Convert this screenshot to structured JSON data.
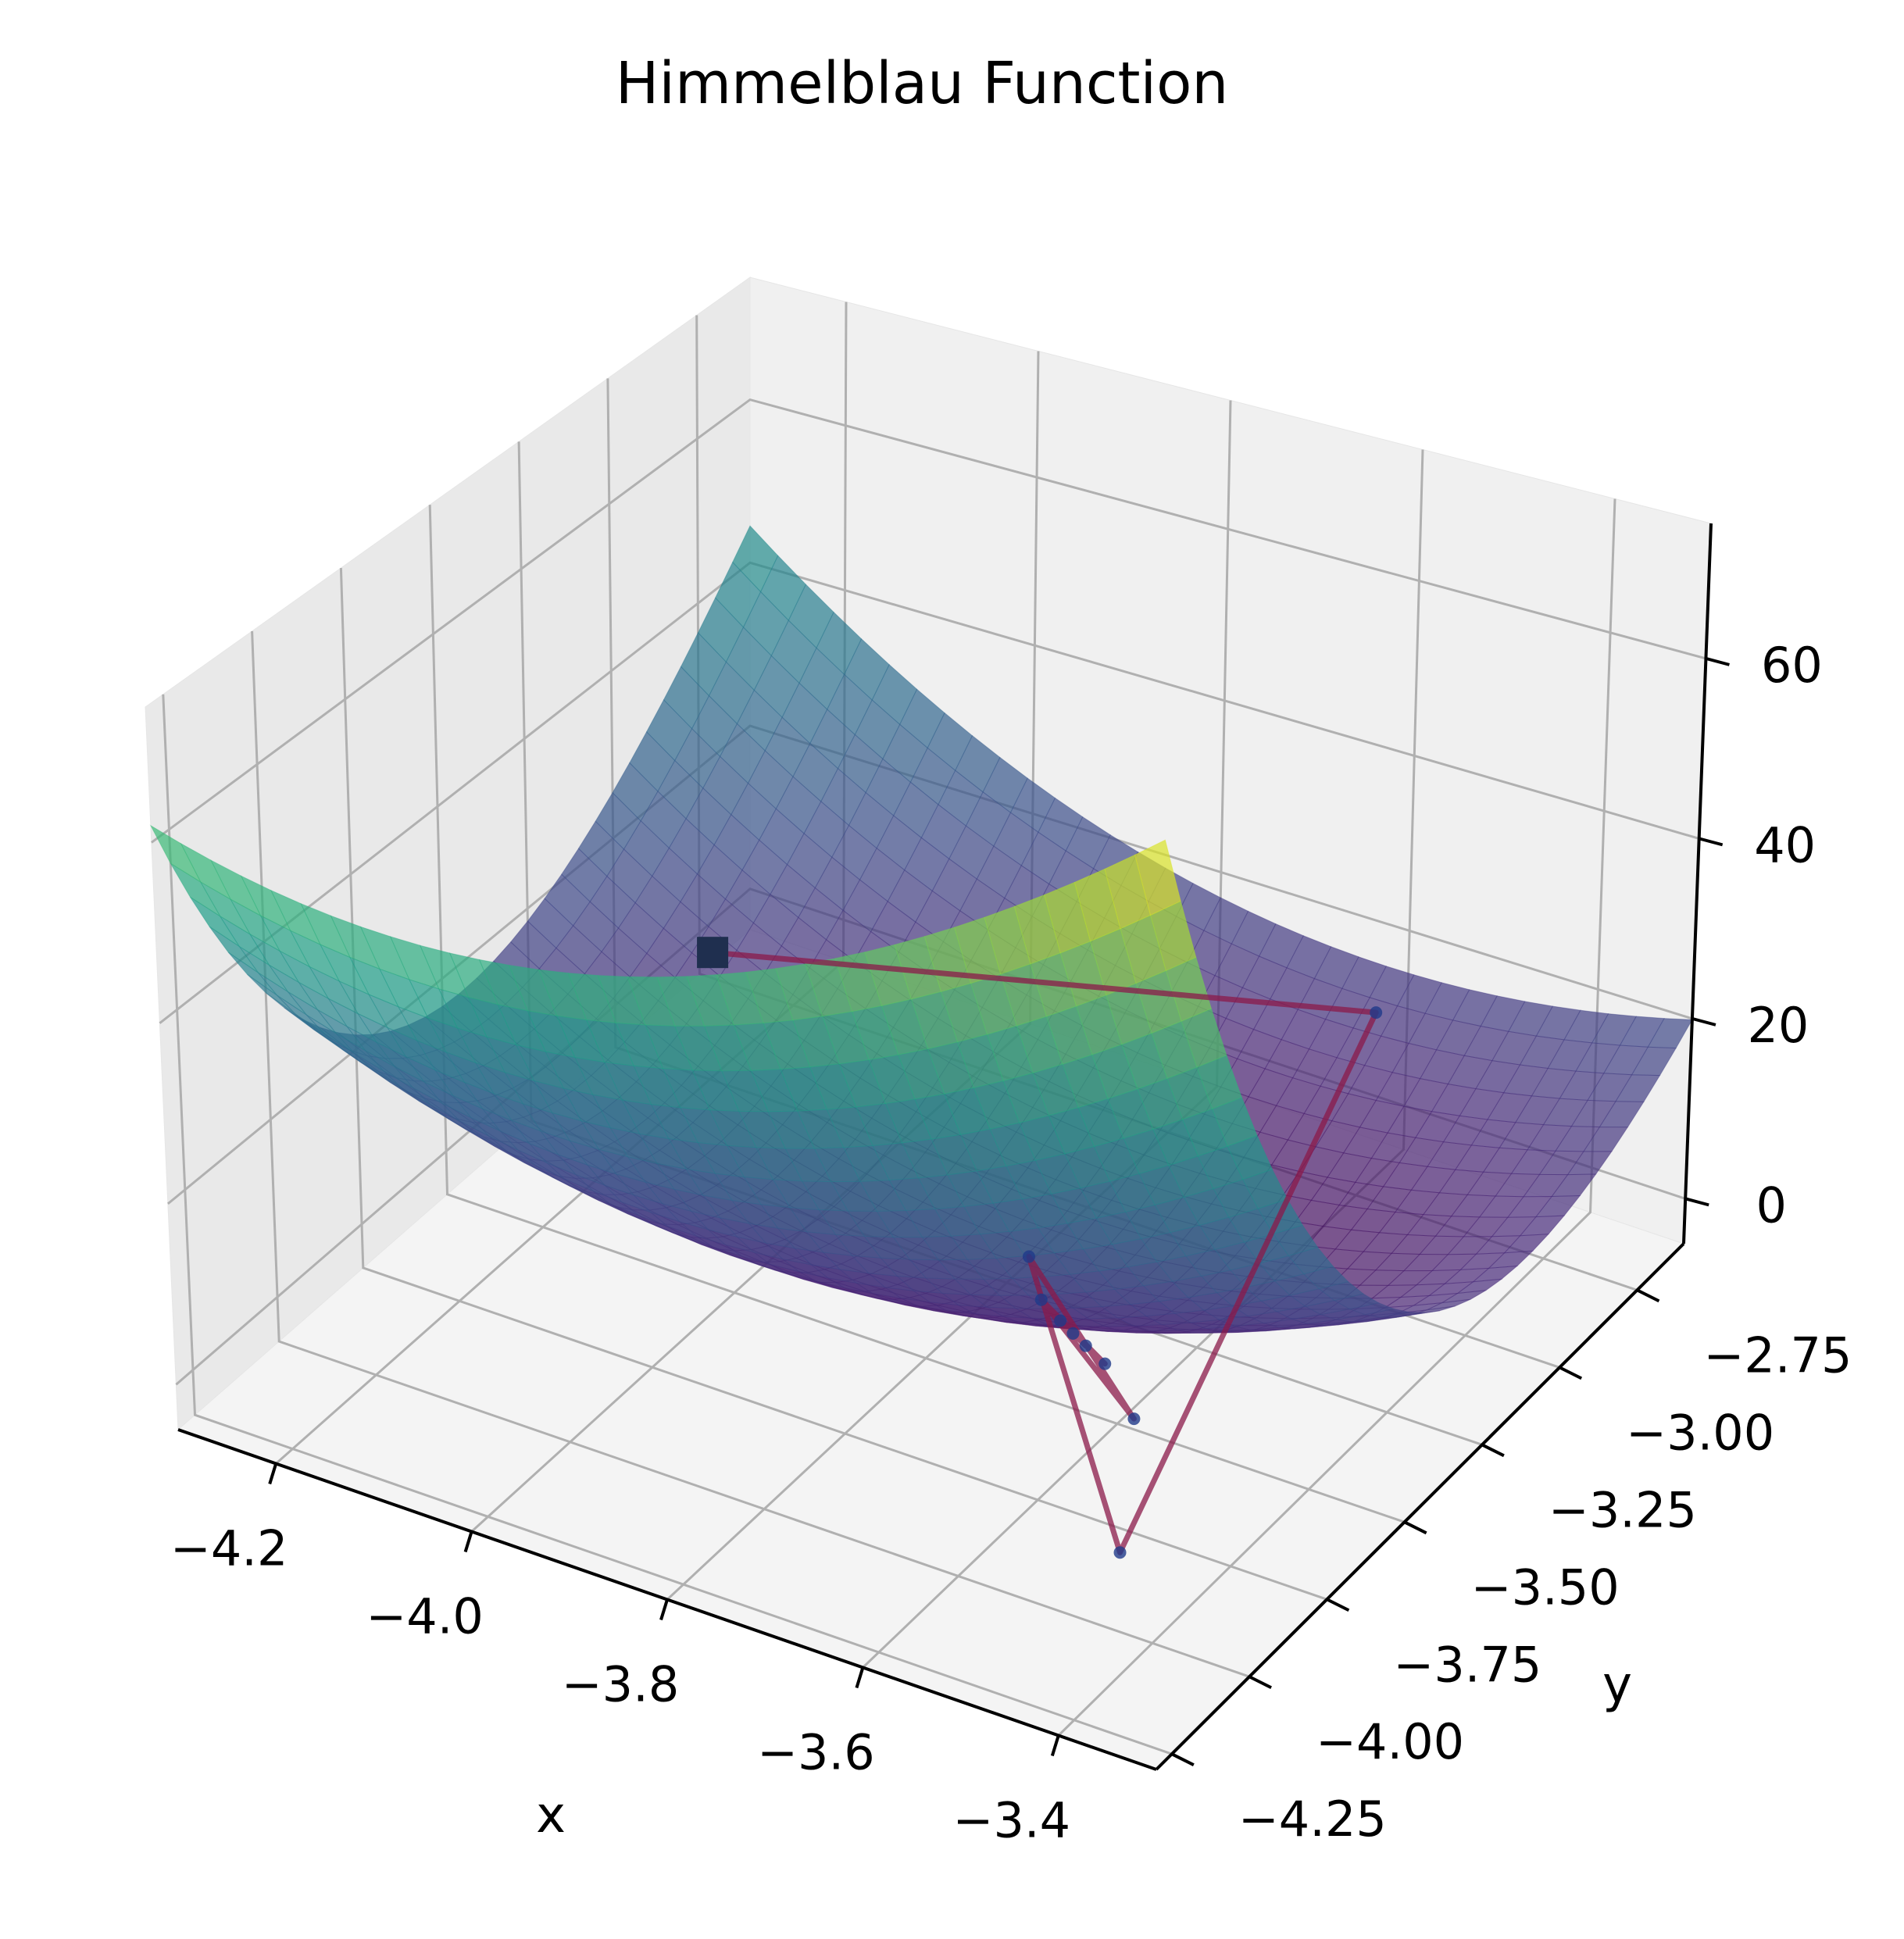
{
  "chart_data": {
    "type": "surface3d",
    "title": "Himmelblau Function",
    "xlabel": "x",
    "ylabel": "y",
    "zlabel": "",
    "xlim": [
      -4.3,
      -3.3
    ],
    "ylim": [
      -4.3,
      -2.6
    ],
    "zlim": [
      -5,
      75
    ],
    "x_ticks": [
      -4.2,
      -4.0,
      -3.8,
      -3.6,
      -3.4
    ],
    "x_tick_labels": [
      "−4.2",
      "−4.0",
      "−3.8",
      "−3.6",
      "−3.4"
    ],
    "y_ticks": [
      -4.25,
      -4.0,
      -3.75,
      -3.5,
      -3.25,
      -3.0,
      -2.75
    ],
    "y_tick_labels": [
      "−4.25",
      "−4.00",
      "−3.75",
      "−3.50",
      "−3.25",
      "−3.00",
      "−2.75"
    ],
    "z_ticks": [
      0,
      20,
      40,
      60
    ],
    "z_tick_labels": [
      "0",
      "20",
      "40",
      "60"
    ],
    "grid": true,
    "colormap": "viridis",
    "surface": {
      "function": "(x^2 + y - 11)^2 + (x + y^2 - 7)^2",
      "x_range": [
        -4.3,
        -3.3
      ],
      "y_range": [
        -4.3,
        -2.6
      ],
      "alpha": 0.7
    },
    "optimization_path": {
      "color": "#8b1a4a",
      "points": [
        {
          "x": -4.25,
          "y": -2.85,
          "z": 3
        },
        {
          "x": -3.6,
          "y": -2.7,
          "z": 14
        },
        {
          "x": -3.45,
          "y": -3.95,
          "z": 1
        },
        {
          "x": -3.76,
          "y": -3.3,
          "z": 1
        },
        {
          "x": -3.55,
          "y": -3.6,
          "z": 0.5
        },
        {
          "x": -3.72,
          "y": -3.38,
          "z": 0.3
        },
        {
          "x": -3.62,
          "y": -3.48,
          "z": 0.1
        },
        {
          "x": -3.69,
          "y": -3.41,
          "z": 0.05
        },
        {
          "x": -3.65,
          "y": -3.45,
          "z": 0.02
        },
        {
          "x": -3.67,
          "y": -3.43,
          "z": 0.01
        }
      ],
      "start_marker": "square"
    },
    "colors": {
      "pane_back": "#f0f0f0",
      "pane_side": "#e9e9e9",
      "pane_floor": "#f4f4f4",
      "grid": "#b0b0b0",
      "path": "#8b1a4a",
      "start_marker": "#1f2f4f"
    }
  }
}
